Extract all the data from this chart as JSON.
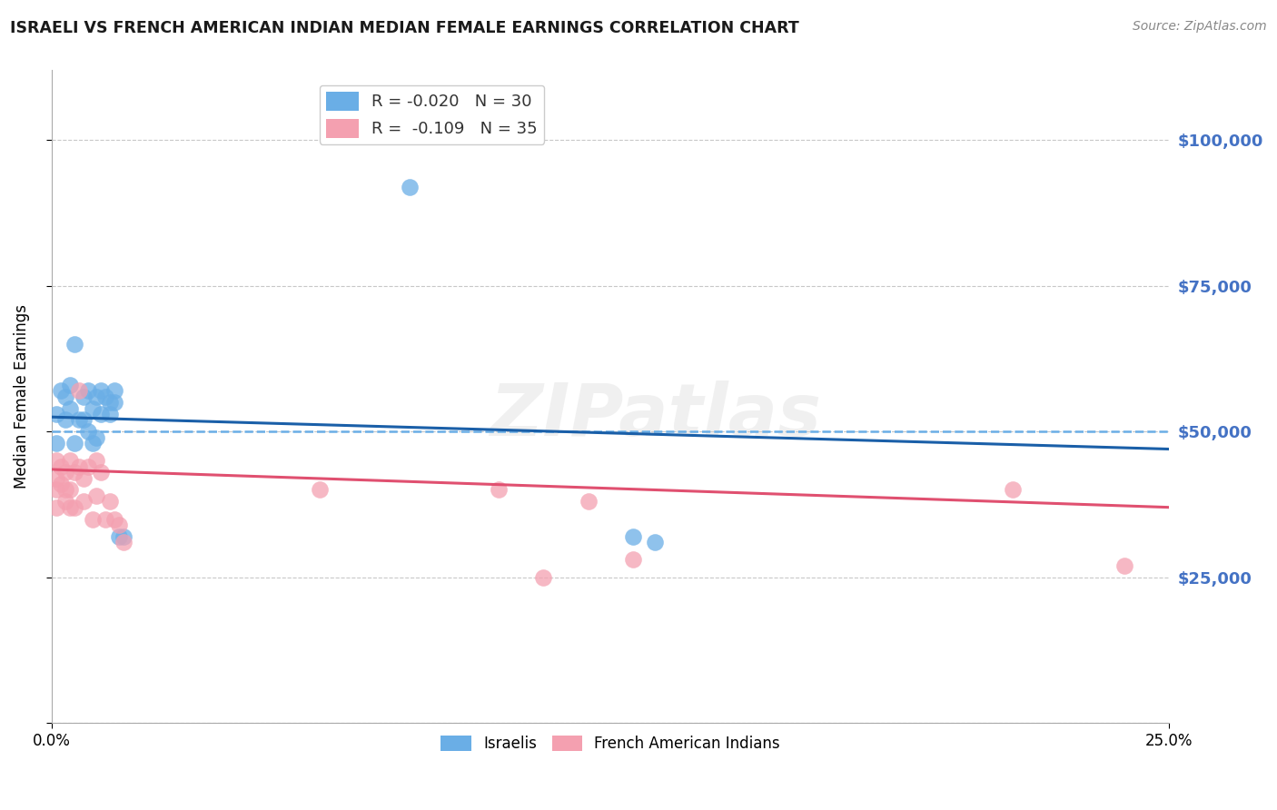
{
  "title": "ISRAELI VS FRENCH AMERICAN INDIAN MEDIAN FEMALE EARNINGS CORRELATION CHART",
  "source": "Source: ZipAtlas.com",
  "ylabel": "Median Female Earnings",
  "watermark": "ZIPatlas",
  "ylim": [
    0,
    112000
  ],
  "xlim": [
    0.0,
    0.25
  ],
  "ytick_values": [
    0,
    25000,
    50000,
    75000,
    100000
  ],
  "ytick_labels_right": [
    "",
    "$25,000",
    "$50,000",
    "$75,000",
    "$100,000"
  ],
  "legend_blue_r": "R = -0.020",
  "legend_blue_n": "N = 30",
  "legend_pink_r": "R =  -0.109",
  "legend_pink_n": "N = 35",
  "blue_color": "#6aaee6",
  "pink_color": "#f4a0b0",
  "blue_line_color": "#1a5fa8",
  "pink_line_color": "#e05070",
  "dashed_line_color": "#6aaee6",
  "grid_color": "#c8c8c8",
  "right_label_color": "#4472c4",
  "israelis_x": [
    0.001,
    0.001,
    0.002,
    0.003,
    0.003,
    0.004,
    0.004,
    0.005,
    0.005,
    0.006,
    0.007,
    0.007,
    0.008,
    0.008,
    0.009,
    0.009,
    0.01,
    0.01,
    0.011,
    0.011,
    0.012,
    0.013,
    0.013,
    0.014,
    0.014,
    0.015,
    0.016,
    0.08,
    0.13,
    0.135
  ],
  "israelis_y": [
    53000,
    48000,
    57000,
    52000,
    56000,
    54000,
    58000,
    65000,
    48000,
    52000,
    56000,
    52000,
    57000,
    50000,
    54000,
    48000,
    56000,
    49000,
    57000,
    53000,
    56000,
    55000,
    53000,
    57000,
    55000,
    32000,
    32000,
    92000,
    32000,
    31000
  ],
  "french_ai_x": [
    0.001,
    0.001,
    0.001,
    0.001,
    0.002,
    0.002,
    0.003,
    0.003,
    0.003,
    0.004,
    0.004,
    0.004,
    0.005,
    0.005,
    0.006,
    0.006,
    0.007,
    0.007,
    0.008,
    0.009,
    0.01,
    0.01,
    0.011,
    0.012,
    0.013,
    0.014,
    0.015,
    0.016,
    0.06,
    0.1,
    0.11,
    0.12,
    0.13,
    0.215,
    0.24
  ],
  "french_ai_y": [
    45000,
    42000,
    40000,
    37000,
    44000,
    41000,
    43000,
    40000,
    38000,
    45000,
    40000,
    37000,
    43000,
    37000,
    57000,
    44000,
    42000,
    38000,
    44000,
    35000,
    45000,
    39000,
    43000,
    35000,
    38000,
    35000,
    34000,
    31000,
    40000,
    40000,
    25000,
    38000,
    28000,
    40000,
    27000
  ],
  "blue_trendline_x": [
    0.0,
    0.25
  ],
  "blue_trendline_y": [
    52500,
    47000
  ],
  "pink_trendline_x": [
    0.0,
    0.25
  ],
  "pink_trendline_y": [
    43500,
    37000
  ]
}
